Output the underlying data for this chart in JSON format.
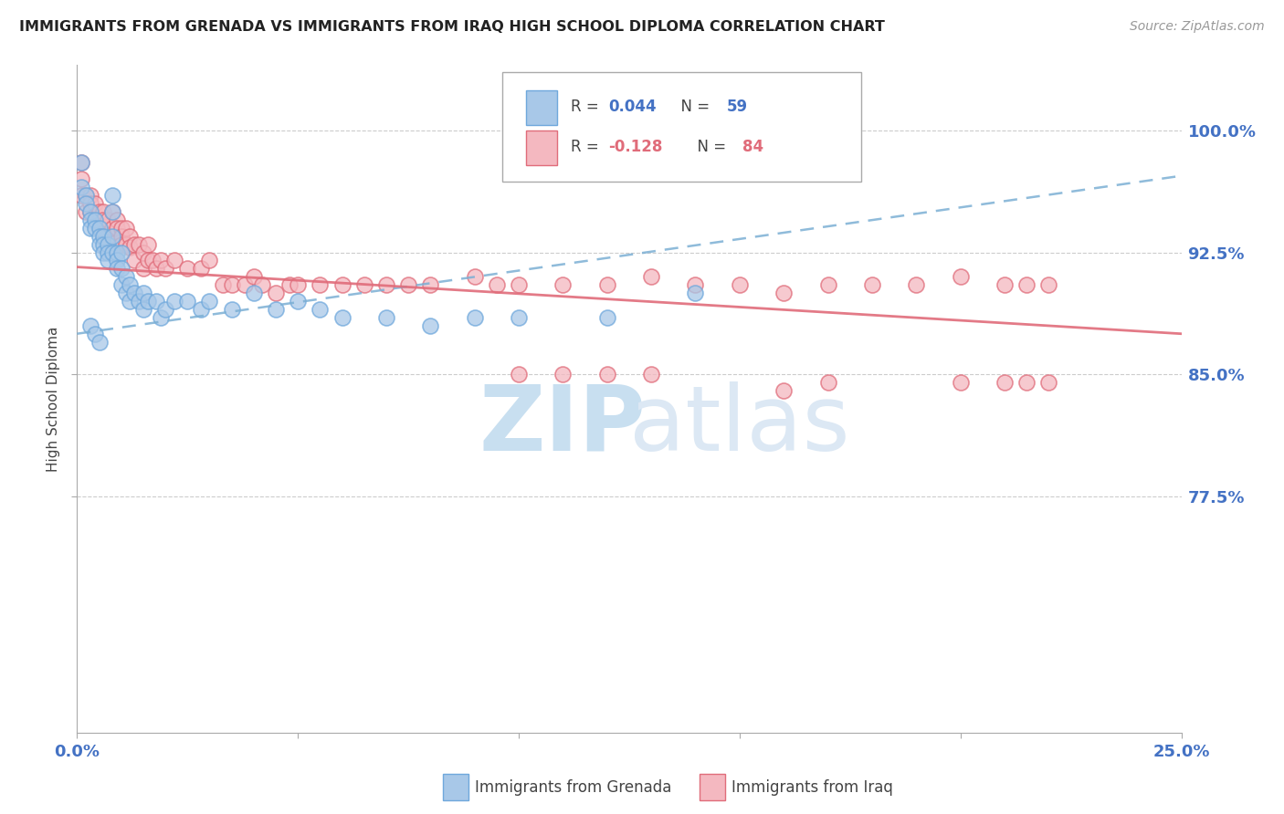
{
  "title": "IMMIGRANTS FROM GRENADA VS IMMIGRANTS FROM IRAQ HIGH SCHOOL DIPLOMA CORRELATION CHART",
  "source": "Source: ZipAtlas.com",
  "ylabel": "High School Diploma",
  "y_tick_labels": [
    "77.5%",
    "85.0%",
    "92.5%",
    "100.0%"
  ],
  "y_tick_values": [
    0.775,
    0.85,
    0.925,
    1.0
  ],
  "xlim": [
    0.0,
    0.25
  ],
  "ylim": [
    0.63,
    1.04
  ],
  "grenada_R": 0.044,
  "grenada_N": 59,
  "iraq_R": -0.128,
  "iraq_N": 84,
  "grenada_color": "#a8c8e8",
  "iraq_color": "#f4b8c0",
  "grenada_edge_color": "#6fa8dc",
  "iraq_edge_color": "#e06c7a",
  "grenada_line_color": "#7bafd4",
  "iraq_line_color": "#e06c7a",
  "trendline_grenada_y0": 0.875,
  "trendline_grenada_y1": 0.972,
  "trendline_iraq_y0": 0.916,
  "trendline_iraq_y1": 0.875,
  "axis_label_color": "#4472c4",
  "watermark_zip_color": "#c8dff0",
  "watermark_atlas_color": "#dce8f4",
  "grenada_points_x": [
    0.001,
    0.001,
    0.002,
    0.002,
    0.003,
    0.003,
    0.003,
    0.004,
    0.004,
    0.005,
    0.005,
    0.005,
    0.006,
    0.006,
    0.006,
    0.007,
    0.007,
    0.007,
    0.008,
    0.008,
    0.008,
    0.008,
    0.009,
    0.009,
    0.009,
    0.01,
    0.01,
    0.01,
    0.011,
    0.011,
    0.012,
    0.012,
    0.013,
    0.014,
    0.015,
    0.015,
    0.016,
    0.018,
    0.019,
    0.02,
    0.022,
    0.025,
    0.028,
    0.03,
    0.035,
    0.04,
    0.045,
    0.05,
    0.055,
    0.06,
    0.07,
    0.08,
    0.09,
    0.1,
    0.12,
    0.14,
    0.003,
    0.004,
    0.005
  ],
  "grenada_points_y": [
    0.98,
    0.965,
    0.96,
    0.955,
    0.95,
    0.945,
    0.94,
    0.945,
    0.94,
    0.94,
    0.935,
    0.93,
    0.935,
    0.93,
    0.925,
    0.93,
    0.925,
    0.92,
    0.96,
    0.95,
    0.935,
    0.925,
    0.925,
    0.92,
    0.915,
    0.925,
    0.915,
    0.905,
    0.91,
    0.9,
    0.905,
    0.895,
    0.9,
    0.895,
    0.9,
    0.89,
    0.895,
    0.895,
    0.885,
    0.89,
    0.895,
    0.895,
    0.89,
    0.895,
    0.89,
    0.9,
    0.89,
    0.895,
    0.89,
    0.885,
    0.885,
    0.88,
    0.885,
    0.885,
    0.885,
    0.9,
    0.88,
    0.875,
    0.87
  ],
  "iraq_points_x": [
    0.001,
    0.001,
    0.001,
    0.002,
    0.002,
    0.003,
    0.003,
    0.003,
    0.004,
    0.004,
    0.005,
    0.005,
    0.005,
    0.006,
    0.006,
    0.006,
    0.007,
    0.007,
    0.008,
    0.008,
    0.009,
    0.009,
    0.01,
    0.01,
    0.01,
    0.011,
    0.011,
    0.012,
    0.012,
    0.013,
    0.013,
    0.014,
    0.015,
    0.015,
    0.016,
    0.016,
    0.017,
    0.018,
    0.019,
    0.02,
    0.022,
    0.025,
    0.028,
    0.03,
    0.033,
    0.035,
    0.038,
    0.04,
    0.042,
    0.045,
    0.048,
    0.05,
    0.055,
    0.06,
    0.065,
    0.07,
    0.075,
    0.08,
    0.09,
    0.095,
    0.1,
    0.11,
    0.12,
    0.13,
    0.14,
    0.15,
    0.16,
    0.17,
    0.18,
    0.19,
    0.2,
    0.21,
    0.215,
    0.22,
    0.16,
    0.17,
    0.1,
    0.11,
    0.12,
    0.13,
    0.2,
    0.21,
    0.215,
    0.22
  ],
  "iraq_points_y": [
    0.98,
    0.97,
    0.96,
    0.96,
    0.95,
    0.96,
    0.955,
    0.95,
    0.955,
    0.945,
    0.95,
    0.945,
    0.94,
    0.95,
    0.945,
    0.935,
    0.945,
    0.935,
    0.95,
    0.94,
    0.945,
    0.94,
    0.94,
    0.935,
    0.93,
    0.94,
    0.93,
    0.935,
    0.928,
    0.93,
    0.92,
    0.93,
    0.925,
    0.915,
    0.93,
    0.92,
    0.92,
    0.915,
    0.92,
    0.915,
    0.92,
    0.915,
    0.915,
    0.92,
    0.905,
    0.905,
    0.905,
    0.91,
    0.905,
    0.9,
    0.905,
    0.905,
    0.905,
    0.905,
    0.905,
    0.905,
    0.905,
    0.905,
    0.91,
    0.905,
    0.905,
    0.905,
    0.905,
    0.91,
    0.905,
    0.905,
    0.9,
    0.905,
    0.905,
    0.905,
    0.91,
    0.905,
    0.905,
    0.905,
    0.84,
    0.845,
    0.85,
    0.85,
    0.85,
    0.85,
    0.845,
    0.845,
    0.845,
    0.845
  ]
}
